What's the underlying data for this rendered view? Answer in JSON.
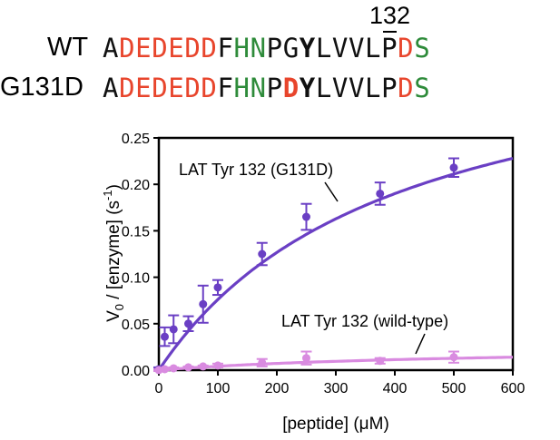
{
  "sequences": {
    "position_label": "132",
    "rows": [
      {
        "label": "WT",
        "residues": [
          {
            "aa": "A",
            "color": "black"
          },
          {
            "aa": "D",
            "color": "red"
          },
          {
            "aa": "E",
            "color": "red"
          },
          {
            "aa": "D",
            "color": "red"
          },
          {
            "aa": "E",
            "color": "red"
          },
          {
            "aa": "D",
            "color": "red"
          },
          {
            "aa": "D",
            "color": "red"
          },
          {
            "aa": "F",
            "color": "black"
          },
          {
            "aa": "H",
            "color": "green"
          },
          {
            "aa": "N",
            "color": "green"
          },
          {
            "aa": "P",
            "color": "black"
          },
          {
            "aa": "G",
            "color": "black"
          },
          {
            "aa": "Y",
            "color": "black",
            "bold": true
          },
          {
            "aa": "L",
            "color": "black"
          },
          {
            "aa": "V",
            "color": "black"
          },
          {
            "aa": "V",
            "color": "black"
          },
          {
            "aa": "L",
            "color": "black"
          },
          {
            "aa": "P",
            "color": "black"
          },
          {
            "aa": "D",
            "color": "red"
          },
          {
            "aa": "S",
            "color": "green"
          }
        ]
      },
      {
        "label": "G131D",
        "residues": [
          {
            "aa": "A",
            "color": "black"
          },
          {
            "aa": "D",
            "color": "red"
          },
          {
            "aa": "E",
            "color": "red"
          },
          {
            "aa": "D",
            "color": "red"
          },
          {
            "aa": "E",
            "color": "red"
          },
          {
            "aa": "D",
            "color": "red"
          },
          {
            "aa": "D",
            "color": "red"
          },
          {
            "aa": "F",
            "color": "black"
          },
          {
            "aa": "H",
            "color": "green"
          },
          {
            "aa": "N",
            "color": "green"
          },
          {
            "aa": "P",
            "color": "black"
          },
          {
            "aa": "D",
            "color": "red",
            "bold": true
          },
          {
            "aa": "Y",
            "color": "black",
            "bold": true
          },
          {
            "aa": "L",
            "color": "black"
          },
          {
            "aa": "V",
            "color": "black"
          },
          {
            "aa": "V",
            "color": "black"
          },
          {
            "aa": "L",
            "color": "black"
          },
          {
            "aa": "P",
            "color": "black"
          },
          {
            "aa": "D",
            "color": "red"
          },
          {
            "aa": "S",
            "color": "green"
          }
        ]
      }
    ]
  },
  "colors": {
    "red": "#e8452c",
    "green": "#2e8b3a",
    "black": "#111111",
    "mutant": "#6a3fc4",
    "wildtype": "#d98be0"
  },
  "chart_data": {
    "type": "scatter",
    "title": "",
    "xlabel": "[peptide] (μM)",
    "ylabel_main": "V",
    "ylabel_sub": "0",
    "ylabel_rest": " / [enzyme] (s",
    "ylabel_sup": "-1",
    "ylabel_end": ")",
    "xlim": [
      0,
      600
    ],
    "ylim": [
      0,
      0.25
    ],
    "x_ticks": [
      0,
      100,
      200,
      300,
      400,
      500,
      600
    ],
    "x_tick_labels": [
      "0",
      "100",
      "200",
      "300",
      "400",
      "500",
      "600"
    ],
    "y_ticks": [
      0,
      0.05,
      0.1,
      0.15,
      0.2,
      0.25
    ],
    "y_tick_labels": [
      "0.00",
      "0.05",
      "0.10",
      "0.15",
      "0.20",
      "0.25"
    ],
    "grid": false,
    "series": [
      {
        "name": "LAT Tyr 132 (G131D)",
        "color": "#6a3fc4",
        "x": [
          0,
          10,
          25,
          50,
          75,
          100,
          175,
          250,
          375,
          500
        ],
        "y": [
          0.001,
          0.036,
          0.044,
          0.05,
          0.071,
          0.089,
          0.125,
          0.165,
          0.19,
          0.218
        ],
        "err": [
          0.002,
          0.01,
          0.015,
          0.008,
          0.02,
          0.008,
          0.012,
          0.014,
          0.012,
          0.01
        ],
        "fit": {
          "model": "michaelis-menten",
          "vmax": 0.38,
          "km": 400
        }
      },
      {
        "name": "LAT Tyr 132 (wild-type)",
        "color": "#d98be0",
        "x": [
          0,
          10,
          25,
          50,
          75,
          100,
          175,
          250,
          375,
          500
        ],
        "y": [
          0.0,
          0.001,
          0.002,
          0.003,
          0.004,
          0.005,
          0.008,
          0.013,
          0.01,
          0.014
        ],
        "err": [
          0.001,
          0.001,
          0.001,
          0.001,
          0.001,
          0.002,
          0.004,
          0.007,
          0.003,
          0.006
        ],
        "fit": {
          "model": "michaelis-menten",
          "vmax": 0.026,
          "km": 520
        }
      }
    ],
    "annotations": [
      {
        "text": "LAT Tyr 132 (G131D)",
        "series": 0
      },
      {
        "text": "LAT Tyr 132 (wild-type)",
        "series": 1
      }
    ]
  }
}
